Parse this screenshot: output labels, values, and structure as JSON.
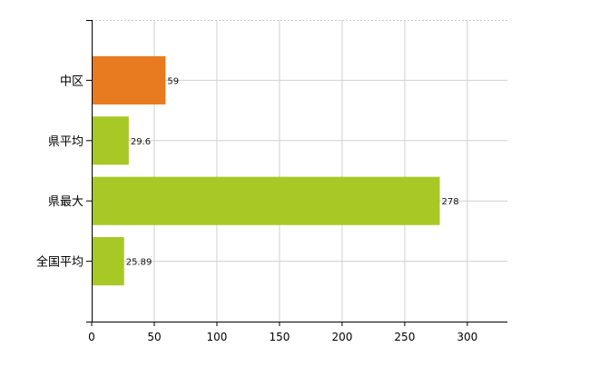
{
  "chart_data": {
    "type": "bar",
    "orientation": "horizontal",
    "categories": [
      "中区",
      "県平均",
      "県最大",
      "全国平均"
    ],
    "values": [
      59,
      29.6,
      278,
      25.89
    ],
    "data_labels": [
      "59",
      "29.6",
      "278",
      "25.89"
    ],
    "bar_colors": [
      "#E87A1F",
      "#A8C826",
      "#A8C826",
      "#A8C826"
    ],
    "xlim": [
      0,
      332
    ],
    "xticks": [
      0,
      50,
      100,
      150,
      200,
      250,
      300
    ],
    "xtick_labels": [
      "0",
      "50",
      "100",
      "150",
      "200",
      "250",
      "300"
    ],
    "grid": true,
    "title": "",
    "xlabel": "",
    "ylabel": ""
  }
}
